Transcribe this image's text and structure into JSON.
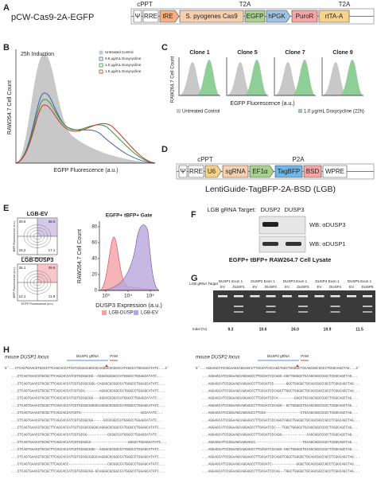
{
  "panel_a": {
    "label": "A",
    "title": "pCW-Cas9-2A-EGFP",
    "top_labels": [
      "cPPT",
      "T2A",
      "T2A"
    ],
    "parts": [
      "Ψ",
      "RRE",
      "tRE",
      "S. pyogenes Cas9",
      "EGFP",
      "hPGK",
      "PuroR",
      "rtTA-A"
    ]
  },
  "panel_b": {
    "label": "B",
    "subtitle": "25h Induction",
    "y_label": "RAW264.7 Cell Count",
    "x_label": "EGFP Fluorescence (a.u.)",
    "legend": [
      "Untreated Control",
      "0.5 μg/mL Doxycycline",
      "1.0 μg/mL Doxycycline",
      "1.5 μg/mL Doxycycline"
    ]
  },
  "panel_c": {
    "label": "C",
    "clones": [
      "Clone 1",
      "Clone 5",
      "Clone 7",
      "Clone 9"
    ],
    "y_label": "RAW264.7 Cell Count",
    "x_label": "EGFP Fluorescence (a.u.)",
    "legend": [
      "Untreated Control",
      "1.0 μg/mL Doxycycline (22h)"
    ]
  },
  "panel_d": {
    "label": "D",
    "top_labels": [
      "cPPT",
      "P2A"
    ],
    "parts": [
      "Ψ",
      "RRE",
      "U6",
      "sgRNA",
      "EF1α",
      "TagBFP",
      "BSD",
      "WPRE"
    ],
    "caption": "LentiGuide-TagBFP-2A-BSD (LGB)"
  },
  "panel_e": {
    "label": "E",
    "plots": [
      {
        "title": "LGB-EV",
        "quadrants": [
          "29.6",
          "35.0",
          "18.2",
          "17.1"
        ]
      },
      {
        "title": "LGB-DUSP3",
        "quadrants": [
          "36.1",
          "39.9",
          "12.1",
          "11.9"
        ]
      }
    ],
    "scatter_y_label": "tBFP Fluorescence (a.u.)",
    "scatter_x_label": "EGFP Fluorescence (a.u.)",
    "hist_title": "EGFP+ tBFP+ Gate",
    "hist_y_label": "RAW264.7 Cell Count",
    "hist_x_label": "DUSP3 Expression (a.u.)",
    "hist_yticks": [
      "0",
      "20",
      "40",
      "60",
      "80"
    ],
    "hist_xticks": [
      "10³",
      "10⁴",
      "10⁵"
    ],
    "legend": [
      "LGB-DUSP3",
      "LGB-EV"
    ]
  },
  "panel_f": {
    "label": "F",
    "target_label": "LGB gRNA Target:",
    "lanes": [
      "DUSP2",
      "DUSP3"
    ],
    "blots": [
      "WB: αDUSP3",
      "WB: αDUSP1"
    ],
    "caption": "EGFP+ tBFP+ RAW264.7 Cell Lysate"
  },
  "panel_g": {
    "label": "G",
    "target_label": "LGB gRNA Target",
    "indel_label": "Indel (%)",
    "groups": [
      {
        "name": "DUSP1 Exon 1",
        "lanes": [
          "EV",
          "DUSP1"
        ],
        "indel": "9.3"
      },
      {
        "name": "DUSP2 Exon 1",
        "lanes": [
          "EV",
          "DUSP2"
        ],
        "indel": "10.6"
      },
      {
        "name": "DUSP3 Exon 1",
        "lanes": [
          "EV",
          "DUSP3"
        ],
        "indel": "24.0"
      },
      {
        "name": "DUSP4 Exon 1",
        "lanes": [
          "EV",
          "DUSP4"
        ],
        "indel": "19.9"
      },
      {
        "name": "DUSP5 Exon 1",
        "lanes": [
          "EV",
          "DUSP5"
        ],
        "indel": "11.5"
      }
    ]
  },
  "panel_h": {
    "label": "H",
    "loci": [
      {
        "title": "mouse DUSP1 locus",
        "grna": "DUSP1 gRNA",
        "pam": "PAM",
        "reference": "5'...CTCAGTGAACGTGCGCTTCAGCACCATCGTGCGGCGGGCGCAGGGCGCGGCCATGGGCCTGGAGCATATC...3'",
        "reads": [
          "...CTCAGTGAACGTGCGCTTCAGCACCATCGTGCGGCGG--AGGGCGCGGCCATGGGCCTGGAGCATATC...",
          "...CTCAGTGAACGTGCGCTTCAGCACCATCGTGCGGCGGG-CAGGGCGCGGCCATGGGCCTGGAGCATATC...",
          "...CTCAGTGAACGTGCGCTTCAGCACCATCGTGCG-------AGGGCGCGGCCATGGGCCTGGAGCATATC...",
          "...CTCAGTGAACGTGCGCTTCAGCACCATCGTGCGGCGG---GGGCGCGGCCATGGGCCTGGAGCATATC...",
          "...CTCAGTGAACGTGCGCTTCAGCACCATCGTGCGGCGGGCCAGGGCGCGGCCATGGGCCTGGAGCATATC...",
          "...CTCAGTGAACGTGCGCTTCAGCACCATCGTG-----------------------------AGCATATC...",
          "...CTCAGTGAACGTGCGCTTCAGCACCATCGTGCGGCGG-----GCGCGGCCATGGGCCTGGAGCATATC...",
          "...CTCAGTGAACGTGCGCTTCAGCACCATCGTGCGGCGGGGCAGGGCGCGGCCATGGGCCTGGAGCATATC...",
          "...CTCAGTGAACGTGCGCTTCAGCACCATCGTGCGG----------GCGGCCATGGGCCTGGAGCATATC...",
          "...CTCAGTGAACGTGCGCTTCAGCACCATCGTGCGGCG------------------GGGCCTGGAGCATATC...",
          "...CTCAGTGAACGTGCGCTTCAGCACCATCGTGCGGCGGG--AGGGCGCGGCCATGGGCCTGGAGCATATC...",
          "...CTCAGTGAACGTGCGCTTCAGCACCATCGTGCGGCGGGCAAGGGCGCGGCCATGGGCCTGGAGCATATC...",
          "...CTCAGTGAACGTGCGCTTCAGCACC-------------------CGCGGCCATGGGCCTGGAGCATATC...",
          "...CTCAGTGAACGTGCGCTTCAGCACCATCGTGCGGCGG-GCAGGGCGCGGCCATGGGCCTGGAGCATATC..."
        ]
      },
      {
        "title": "mouse DUSP2 locus",
        "grna": "DUSP2 gRNA",
        "pam": "PAM",
        "reference": "5'...AGGAGCATCCGGAAGCAGGAGCCTTGCGATCCCAGGTGGCTGGGGCTGCAGCGGCCGCCTCGGCAGCTAG...3'",
        "reads": [
          "...AGGAGCATCCGGAAGCAGGAGCCTTGCGATCCCAGG-GGCTGGGGCTGCAGCGGCCGCCTCGGCAGCTAG...",
          "...AGGAGCATCCGGAAGCAGGAGCCTTGCGATCC------GGCTGGGGCTGCAGCGGCCGCCTCGGCAGCTAG...",
          "...AGGAGCATCCGGAAGCAGGAGCCTTGCGATCCCAGGTTGGCTGGGGCTGCAGCGGCCGCCTCGGCAGCTAG...",
          "...AGGAGCATCCGGAAGCAGGAGCCTTGCGATCCCA--------GGGCTGCAGCGGCCGCCTCGGCAGCTAG...",
          "...AGGAGCATCCGGAAGCAGGAGCCTTGCGATCCCAGG--GCTGGGGCTGCAGCGGCCGCCTCGGCAGCTAG...",
          "...AGGAGCATCCGGAAGCAGGAGCCTTGCG-----------------CTGCAGCGGCCGCCTCGGCAGCTAG...",
          "...AGGAGCATCCGGAAGCAGGAGCCTTGCGATCCCAGGTAGGCTGGGGCTGCAGCGGCCGCCTCGGCAGCTAG...",
          "...AGGAGCATCCGGAAGCAGGAGCCTTGCGATCCC---TGGCTGGGGCTGCAGCGGCCGCCTCGGCAGCTAG...",
          "...AGGAGCATCCGGAAGCAGGAGCCTTGCGATCCCAGG------------CAGCGGCCGCCTCGGCAGCTAG...",
          "...AGGAGCATCCGGAAGCAGGAGCC-----------------------TGCAGCGGCCGCCTCGGCAGCTAG...",
          "...AGGAGCATCCGGAAGCAGGAGCCTTGCGATCCCAGG-GGCTGGGGCTGCAGCGGCCGCCTCGGCAGCTAG...",
          "...AGGAGCATCCGGAAGCAGGAGCCTTGCGATCCCAGGTCGGCTGGGGCTGCAGCGGCCGCCTCGGCAGCTAG...",
          "...AGGAGCATCCGGAAGCAGGAGCCTTGCGATC------------GGGCTGCAGCGGCCGCCTCGGCAGCTAG...",
          "...AGGAGCATCCGGAAGCAGGAGCCTTGCGATCCCAG--TGGCTGGGGCTGCAGCGGCCGCCTCGGCAGCTAG..."
        ]
      }
    ]
  }
}
